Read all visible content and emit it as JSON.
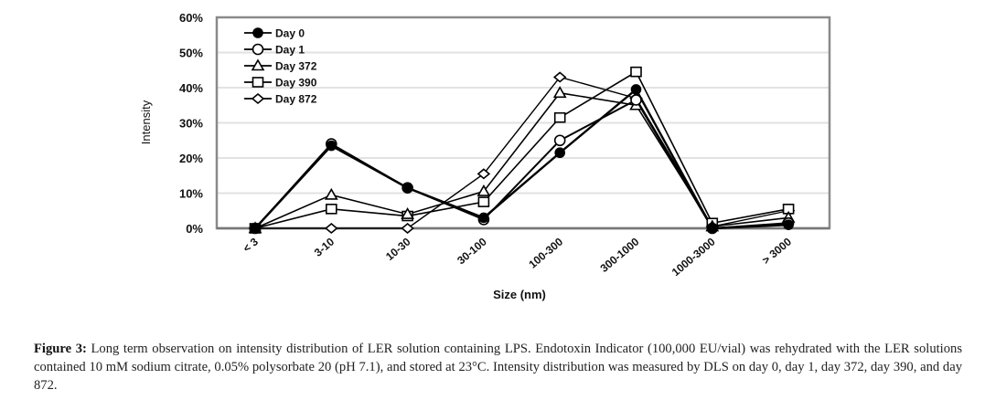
{
  "chart_data": {
    "type": "line",
    "title": "",
    "xlabel": "Size (nm)",
    "ylabel": "Intensity",
    "categories": [
      "< 3",
      "3-10",
      "10-30",
      "30-100",
      "100-300",
      "300-1000",
      "1000-3000",
      "> 3000"
    ],
    "ylim": [
      0,
      60
    ],
    "yticks": [
      0,
      10,
      20,
      30,
      40,
      50,
      60
    ],
    "ytick_labels": [
      "0%",
      "10%",
      "20%",
      "30%",
      "40%",
      "50%",
      "60%"
    ],
    "grid": true,
    "legend_position": "top-left",
    "series": [
      {
        "name": "Day 0",
        "marker": "filled-circle",
        "values": [
          0,
          23.5,
          11.5,
          3,
          21.5,
          39.5,
          0,
          1
        ]
      },
      {
        "name": "Day 1",
        "marker": "open-circle",
        "values": [
          0,
          24,
          11.5,
          2.5,
          25,
          36.5,
          0,
          1.5
        ]
      },
      {
        "name": "Day 372",
        "marker": "open-triangle",
        "values": [
          0,
          9.5,
          4,
          10.5,
          38.5,
          35,
          0.5,
          3
        ]
      },
      {
        "name": "Day 390",
        "marker": "open-square",
        "values": [
          0,
          5.5,
          3.5,
          7.5,
          31.5,
          44.5,
          1.5,
          5.5
        ]
      },
      {
        "name": "Day 872",
        "marker": "open-diamond",
        "values": [
          0,
          0,
          0,
          15.5,
          43,
          37,
          0.5,
          5
        ]
      }
    ]
  },
  "caption": {
    "label": "Figure 3:",
    "text": " Long term observation on intensity distribution of LER solution containing LPS. Endotoxin Indicator (100,000 EU/vial) was rehydrated with the LER solutions contained 10 mM sodium citrate, 0.05% polysorbate 20 (pH 7.1), and stored at 23°C. Intensity distribution was measured by DLS on day 0, day 1, day 372, day 390, and day 872."
  }
}
